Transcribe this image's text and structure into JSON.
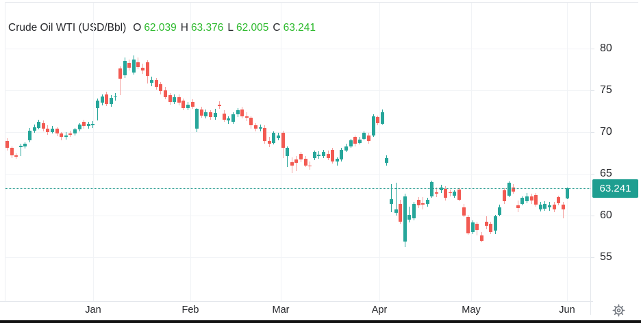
{
  "chart": {
    "instrument": "Crude Oil WTI (USD/Bbl)",
    "ohlc_summary": [
      {
        "label": "O",
        "value": "62.039"
      },
      {
        "label": "H",
        "value": "63.376"
      },
      {
        "label": "L",
        "value": "62.005"
      },
      {
        "label": "C",
        "value": "63.241"
      }
    ],
    "price_badge": "63.241"
  },
  "colors": {
    "up": "#26a69a",
    "down": "#f25a52",
    "down_wick": "#f4a09e",
    "value_green": "#2cb92c",
    "badge_bg": "#1e9e90",
    "price_line": "#2a9d90",
    "text": "#26272b",
    "muted_icon": "#70757d"
  },
  "icons": {
    "settings": "gear-icon"
  },
  "chart_data": {
    "type": "candlestick",
    "title": "Crude Oil WTI (USD/Bbl)",
    "open": 62.039,
    "high": 63.376,
    "low": 62.005,
    "close": 63.241,
    "price_line_value": 63.241,
    "x_ticks": [
      "Jan",
      "Feb",
      "Mar",
      "Apr",
      "May",
      "Jun"
    ],
    "y_ticks": [
      80,
      75,
      70,
      65,
      60,
      55
    ],
    "y_visible_range": [
      50.5,
      85.5
    ],
    "grid": true,
    "legend": "none",
    "ohlc_fields": [
      "open",
      "high",
      "low",
      "close"
    ],
    "candles_ohlc": [
      [
        68.9,
        69.3,
        67.8,
        68.1
      ],
      [
        68.1,
        68.3,
        66.9,
        67.2
      ],
      [
        67.2,
        67.5,
        66.8,
        67.1
      ],
      [
        68.2,
        68.6,
        67.1,
        68.4
      ],
      [
        68.3,
        68.8,
        68.0,
        68.6
      ],
      [
        69.0,
        70.5,
        68.8,
        70.2
      ],
      [
        70.2,
        70.9,
        69.9,
        70.6
      ],
      [
        70.5,
        71.5,
        70.3,
        71.2
      ],
      [
        71.1,
        71.4,
        70.1,
        70.4
      ],
      [
        70.4,
        70.8,
        69.7,
        70.0
      ],
      [
        70.0,
        70.7,
        69.8,
        70.4
      ],
      [
        70.4,
        70.6,
        69.5,
        69.8
      ],
      [
        69.8,
        70.0,
        69.0,
        69.4
      ],
      [
        69.4,
        70.0,
        69.1,
        69.6
      ],
      [
        69.8,
        70.2,
        69.4,
        69.7
      ],
      [
        69.8,
        70.5,
        69.6,
        70.3
      ],
      [
        70.3,
        71.1,
        70.1,
        70.9
      ],
      [
        71.2,
        71.5,
        70.4,
        70.7
      ],
      [
        70.7,
        71.2,
        70.4,
        71.0
      ],
      [
        70.8,
        71.3,
        70.5,
        71.0
      ],
      [
        72.9,
        74.0,
        71.4,
        73.8
      ],
      [
        73.5,
        74.5,
        73.2,
        74.3
      ],
      [
        74.5,
        74.8,
        73.1,
        73.4
      ],
      [
        73.4,
        74.4,
        73.0,
        74.1
      ],
      [
        74.2,
        74.7,
        73.8,
        74.3
      ],
      [
        77.6,
        77.9,
        74.4,
        76.4
      ],
      [
        76.8,
        78.9,
        76.5,
        78.5
      ],
      [
        78.3,
        78.7,
        77.4,
        77.7
      ],
      [
        77.1,
        79.2,
        76.9,
        78.7
      ],
      [
        78.4,
        78.9,
        77.5,
        77.8
      ],
      [
        77.7,
        78.2,
        77.0,
        77.4
      ],
      [
        78.4,
        78.6,
        75.8,
        76.7
      ],
      [
        75.9,
        76.6,
        75.5,
        76.2
      ],
      [
        76.2,
        76.5,
        75.1,
        75.4
      ],
      [
        75.7,
        76.0,
        74.5,
        74.9
      ],
      [
        75.0,
        75.4,
        73.9,
        74.2
      ],
      [
        74.4,
        74.7,
        73.3,
        73.6
      ],
      [
        73.6,
        74.5,
        73.4,
        74.2
      ],
      [
        74.2,
        74.5,
        73.2,
        73.5
      ],
      [
        73.8,
        74.0,
        72.6,
        72.9
      ],
      [
        72.9,
        73.6,
        72.6,
        73.3
      ],
      [
        73.6,
        73.9,
        72.8,
        73.0
      ],
      [
        70.4,
        72.9,
        70.0,
        72.8
      ],
      [
        72.7,
        73.0,
        71.7,
        72.0
      ],
      [
        71.9,
        72.7,
        71.6,
        72.4
      ],
      [
        72.4,
        72.6,
        71.5,
        71.8
      ],
      [
        71.8,
        72.8,
        71.5,
        72.3
      ],
      [
        73.3,
        73.7,
        72.8,
        73.1
      ],
      [
        72.2,
        72.6,
        71.2,
        71.5
      ],
      [
        71.4,
        71.9,
        71.0,
        71.6
      ],
      [
        71.2,
        72.4,
        71.0,
        72.1
      ],
      [
        72.1,
        72.9,
        71.8,
        72.6
      ],
      [
        72.7,
        73.0,
        71.6,
        71.9
      ],
      [
        71.9,
        72.4,
        71.3,
        71.7
      ],
      [
        71.7,
        71.9,
        70.4,
        70.8
      ],
      [
        70.8,
        71.1,
        70.1,
        70.4
      ],
      [
        70.4,
        70.9,
        70.1,
        70.6
      ],
      [
        70.5,
        70.8,
        68.6,
        68.9
      ],
      [
        68.9,
        69.4,
        68.2,
        68.6
      ],
      [
        68.7,
        70.1,
        68.5,
        69.9
      ],
      [
        69.3,
        69.9,
        69.0,
        69.6
      ],
      [
        69.9,
        70.2,
        66.9,
        68.1
      ],
      [
        67.1,
        68.3,
        65.8,
        68.1
      ],
      [
        66.4,
        67.0,
        65.1,
        66.0
      ],
      [
        66.7,
        67.1,
        65.3,
        66.3
      ],
      [
        67.4,
        67.6,
        66.4,
        66.7
      ],
      [
        66.8,
        67.1,
        65.8,
        66.0
      ],
      [
        66.0,
        66.5,
        65.5,
        65.9
      ],
      [
        66.9,
        67.8,
        66.6,
        67.6
      ],
      [
        67.1,
        67.7,
        66.8,
        67.3
      ],
      [
        67.1,
        67.9,
        66.9,
        67.6
      ],
      [
        67.4,
        67.8,
        66.6,
        66.9
      ],
      [
        67.9,
        68.1,
        66.2,
        66.5
      ],
      [
        66.5,
        67.0,
        66.0,
        66.8
      ],
      [
        66.7,
        68.1,
        66.5,
        67.9
      ],
      [
        67.8,
        68.6,
        67.6,
        68.3
      ],
      [
        68.3,
        69.2,
        68.1,
        69.0
      ],
      [
        69.4,
        69.6,
        68.3,
        68.6
      ],
      [
        68.7,
        69.4,
        68.5,
        69.1
      ],
      [
        69.2,
        70.1,
        69.0,
        69.9
      ],
      [
        69.6,
        69.9,
        68.6,
        68.9
      ],
      [
        69.6,
        72.1,
        69.4,
        71.9
      ],
      [
        71.8,
        72.0,
        70.8,
        71.1
      ],
      [
        71.0,
        72.7,
        70.9,
        72.4
      ],
      [
        66.3,
        67.2,
        66.0,
        66.9
      ],
      [
        61.4,
        63.8,
        60.4,
        62.0
      ],
      [
        60.3,
        63.9,
        60.0,
        60.7
      ],
      [
        61.4,
        61.9,
        59.0,
        59.3
      ],
      [
        56.9,
        62.6,
        56.2,
        62.3
      ],
      [
        59.5,
        61.1,
        59.2,
        60.1
      ],
      [
        59.7,
        61.6,
        59.4,
        61.4
      ],
      [
        61.9,
        62.2,
        60.9,
        61.2
      ],
      [
        61.5,
        62.2,
        60.7,
        61.3
      ],
      [
        61.4,
        62.1,
        61.1,
        61.9
      ],
      [
        62.3,
        64.2,
        62.1,
        64.0
      ],
      [
        62.8,
        63.4,
        62.2,
        62.6
      ],
      [
        63.0,
        63.7,
        62.7,
        63.4
      ],
      [
        63.2,
        63.5,
        61.8,
        62.1
      ],
      [
        62.8,
        63.1,
        62.3,
        62.7
      ],
      [
        62.4,
        63.0,
        62.1,
        62.9
      ],
      [
        63.1,
        63.3,
        61.7,
        61.9
      ],
      [
        61.0,
        61.4,
        59.8,
        60.0
      ],
      [
        59.8,
        60.1,
        57.7,
        57.9
      ],
      [
        58.0,
        59.4,
        57.8,
        59.2
      ],
      [
        59.0,
        59.3,
        57.6,
        58.3
      ],
      [
        57.6,
        58.0,
        56.8,
        57.0
      ],
      [
        59.3,
        59.9,
        58.4,
        58.8
      ],
      [
        59.0,
        59.3,
        57.8,
        58.0
      ],
      [
        58.2,
        60.1,
        57.8,
        59.9
      ],
      [
        60.1,
        61.3,
        59.9,
        61.0
      ],
      [
        63.0,
        63.3,
        61.4,
        61.7
      ],
      [
        62.4,
        64.1,
        62.2,
        63.9
      ],
      [
        63.4,
        63.8,
        62.6,
        62.9
      ],
      [
        61.2,
        61.8,
        60.4,
        60.9
      ],
      [
        61.4,
        62.3,
        61.2,
        62.1
      ],
      [
        61.7,
        62.7,
        61.5,
        62.3
      ],
      [
        62.3,
        62.6,
        61.4,
        61.8
      ],
      [
        62.5,
        62.7,
        61.1,
        61.3
      ],
      [
        60.7,
        61.6,
        60.5,
        61.3
      ],
      [
        60.8,
        61.7,
        60.6,
        61.4
      ],
      [
        61.0,
        61.6,
        60.6,
        61.2
      ],
      [
        61.3,
        61.6,
        60.4,
        60.7
      ],
      [
        62.2,
        62.4,
        61.2,
        61.5
      ],
      [
        61.3,
        61.6,
        59.7,
        60.7
      ],
      [
        62.039,
        63.376,
        62.005,
        63.241
      ]
    ]
  }
}
